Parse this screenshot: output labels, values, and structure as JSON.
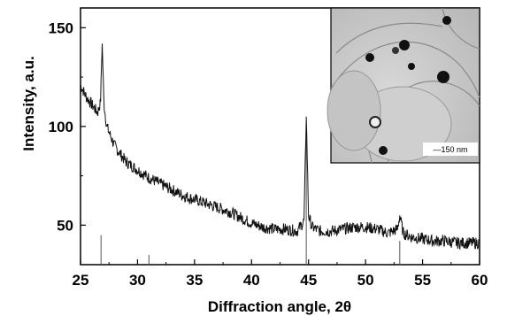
{
  "chart_data": {
    "type": "line",
    "xlabel": "Diffraction angle, 2θ",
    "ylabel": "Intensity, a.u.",
    "xlim": [
      25,
      60
    ],
    "ylim": [
      30,
      160
    ],
    "x_ticks": [
      25,
      30,
      35,
      40,
      45,
      50,
      55,
      60
    ],
    "y_ticks": [
      50,
      100,
      150
    ],
    "grid": false,
    "series": [
      {
        "x": [
          25,
          25.5,
          26,
          26.5,
          26.75,
          26.9,
          27.05,
          27.3,
          28,
          29,
          30,
          31,
          32,
          33,
          34,
          35,
          36,
          37,
          38,
          39,
          40,
          41,
          42,
          43,
          44,
          44.6,
          44.8,
          45.0,
          45.3,
          46,
          47,
          48,
          49,
          50,
          51,
          52,
          52.8,
          53.0,
          53.3,
          54,
          55,
          56,
          57,
          58,
          59,
          60
        ],
        "y": [
          121,
          115,
          111,
          107,
          112,
          142,
          112,
          100,
          90,
          82,
          78,
          74,
          71,
          68,
          65,
          63,
          61,
          59,
          57,
          54,
          51,
          49,
          48,
          48,
          47,
          52,
          105,
          55,
          49,
          47,
          47,
          48,
          49,
          49,
          48,
          46,
          48,
          55,
          46,
          44,
          43,
          42,
          42,
          41,
          41,
          41
        ]
      }
    ],
    "reference_lines": [
      {
        "x": 26.8,
        "y": 45
      },
      {
        "x": 31.0,
        "y": 35
      },
      {
        "x": 44.8,
        "y": 100
      },
      {
        "x": 53.0,
        "y": 42
      }
    ],
    "inset": {
      "scale_bar_label": "—150 nm"
    }
  }
}
